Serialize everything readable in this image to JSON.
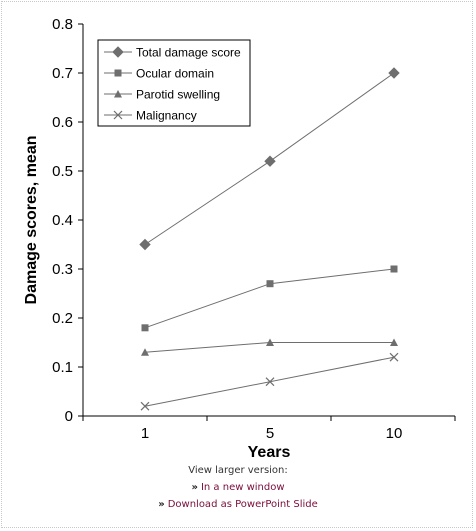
{
  "chart_data": {
    "type": "line",
    "x": [
      "1",
      "5",
      "10"
    ],
    "xlabel": "Years",
    "ylabel": "Damage scores, mean",
    "ylim": [
      0,
      0.8
    ],
    "yticks": [
      "0",
      "0.1",
      "0.2",
      "0.3",
      "0.4",
      "0.5",
      "0.6",
      "0.7",
      "0.8"
    ],
    "grid": false,
    "legend_position": "top-left",
    "series": [
      {
        "name": "Total damage score",
        "marker": "diamond",
        "values": [
          0.35,
          0.52,
          0.7
        ]
      },
      {
        "name": "Ocular domain",
        "marker": "square",
        "values": [
          0.18,
          0.27,
          0.3
        ]
      },
      {
        "name": "Parotid swelling",
        "marker": "triangle",
        "values": [
          0.13,
          0.15,
          0.15
        ]
      },
      {
        "name": "Malignancy",
        "marker": "x",
        "values": [
          0.02,
          0.07,
          0.12
        ]
      }
    ],
    "colors": {
      "line": "#6e6e6e",
      "marker": "#6e6e6e",
      "axis": "#000000"
    }
  },
  "footer": {
    "caption": "View larger version:",
    "chevron": "»",
    "new_window_link": "In a new window",
    "ppt_link": "Download as PowerPoint Slide"
  }
}
